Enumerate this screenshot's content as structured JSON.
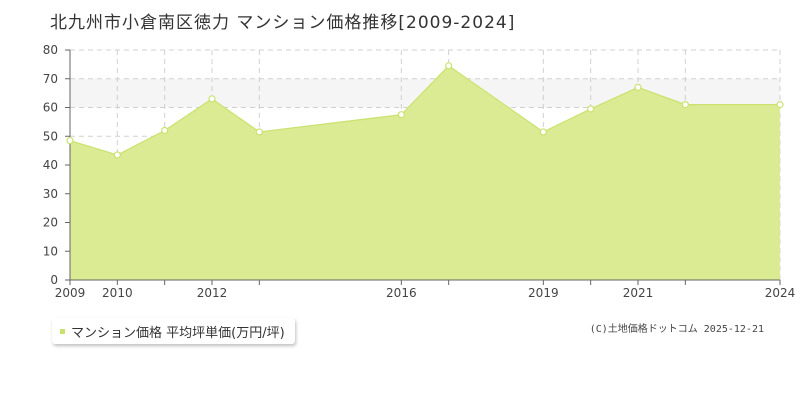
{
  "colors": {
    "fill": "#dbeb93",
    "line": "#c9e26f",
    "grid": "#d0d0d0",
    "axis": "#666666",
    "band": "#f5f5f5"
  },
  "legend": {
    "label": "マンション価格 平均坪単価(万円/坪)"
  },
  "credit": "(C)土地価格ドットコム 2025-12-21",
  "chart_data": {
    "type": "area",
    "title": "北九州市小倉南区徳力 マンション価格推移[2009-2024]",
    "xlabel": "",
    "ylabel": "",
    "x": [
      2009,
      2010,
      2011,
      2012,
      2013,
      2016,
      2017,
      2019,
      2020,
      2021,
      2022,
      2024
    ],
    "x_ticks": [
      2009,
      2010,
      2012,
      2016,
      2019,
      2021,
      2024
    ],
    "y_ticks": [
      0,
      10,
      20,
      30,
      40,
      50,
      60,
      70,
      80
    ],
    "ylim": [
      0,
      80
    ],
    "grid": true,
    "legend_position": "bottom-left",
    "series": [
      {
        "name": "マンション価格 平均坪単価(万円/坪)",
        "values": [
          48.5,
          43.5,
          52,
          63,
          51.5,
          57.5,
          74.5,
          51.5,
          59.5,
          67,
          61,
          61
        ]
      }
    ]
  }
}
